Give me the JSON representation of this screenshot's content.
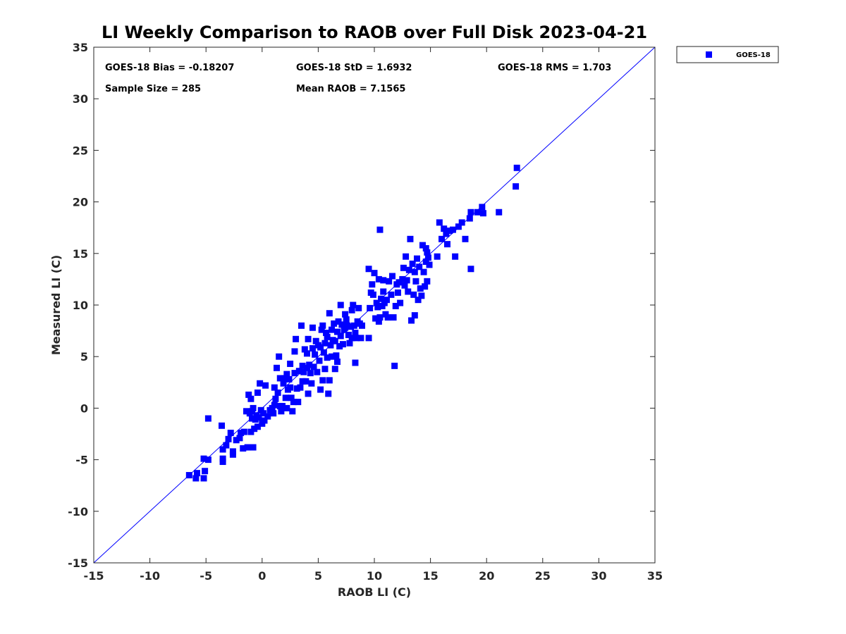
{
  "chart_data": {
    "type": "scatter",
    "title": "LI Weekly Comparison to RAOB over Full Disk 2023-04-21",
    "xlabel": "RAOB LI (C)",
    "ylabel": "Measured LI (C)",
    "xlim": [
      -15,
      35
    ],
    "ylim": [
      -15,
      35
    ],
    "xticks": [
      -15,
      -10,
      -5,
      0,
      5,
      10,
      15,
      20,
      25,
      30,
      35
    ],
    "yticks": [
      -15,
      -10,
      -5,
      0,
      5,
      10,
      15,
      20,
      25,
      30,
      35
    ],
    "grid": false,
    "legend_position": "outside top-right",
    "reference_line": {
      "from": [
        -15,
        -15
      ],
      "to": [
        35,
        35
      ],
      "color": "#0000ff"
    },
    "stats": {
      "bias": "GOES-18 Bias = -0.18207",
      "std": "GOES-18 StD = 1.6932",
      "rms": "GOES-18 RMS = 1.703",
      "sample_size": "Sample Size = 285",
      "mean_raob": "Mean RAOB = 7.1565"
    },
    "series": [
      {
        "name": "GOES-18",
        "color": "#0000ff",
        "marker": "square",
        "points": [
          [
            -6.5,
            -6.5
          ],
          [
            -5.9,
            -6.8
          ],
          [
            -5.8,
            -6.3
          ],
          [
            -5.2,
            -6.8
          ],
          [
            -5.1,
            -6.1
          ],
          [
            -5.2,
            -4.9
          ],
          [
            -4.8,
            -5.0
          ],
          [
            -4.8,
            -1.0
          ],
          [
            -3.6,
            -1.7
          ],
          [
            -3.5,
            -4.0
          ],
          [
            -3.5,
            -4.9
          ],
          [
            -3.5,
            -5.2
          ],
          [
            -3.2,
            -3.6
          ],
          [
            -3.0,
            -3.0
          ],
          [
            -2.8,
            -2.4
          ],
          [
            -2.6,
            -4.2
          ],
          [
            -2.6,
            -4.5
          ],
          [
            -2.3,
            -3.1
          ],
          [
            -2.0,
            -2.9
          ],
          [
            -1.9,
            -2.4
          ],
          [
            -1.7,
            -3.9
          ],
          [
            -1.6,
            -2.3
          ],
          [
            -1.4,
            -0.3
          ],
          [
            -1.3,
            -3.8
          ],
          [
            -1.2,
            1.3
          ],
          [
            -1.1,
            -0.5
          ],
          [
            -1.0,
            0.9
          ],
          [
            -1.0,
            -2.3
          ],
          [
            -0.9,
            -1.0
          ],
          [
            -0.9,
            -0.3
          ],
          [
            -0.8,
            0.0
          ],
          [
            -0.8,
            -3.8
          ],
          [
            -0.7,
            -2.0
          ],
          [
            -0.6,
            -1.1
          ],
          [
            -0.5,
            -0.7
          ],
          [
            -0.4,
            1.5
          ],
          [
            -0.4,
            -1.8
          ],
          [
            -0.3,
            -0.9
          ],
          [
            -0.2,
            2.4
          ],
          [
            -0.1,
            -0.2
          ],
          [
            0.0,
            -1.5
          ],
          [
            0.1,
            -0.5
          ],
          [
            0.2,
            -1.2
          ],
          [
            0.3,
            2.2
          ],
          [
            0.5,
            -0.8
          ],
          [
            0.7,
            -0.2
          ],
          [
            0.9,
            0.0
          ],
          [
            1.0,
            -0.5
          ],
          [
            1.1,
            0.3
          ],
          [
            1.1,
            2.0
          ],
          [
            1.2,
            0.9
          ],
          [
            1.3,
            3.9
          ],
          [
            1.4,
            1.5
          ],
          [
            1.5,
            5.0
          ],
          [
            1.6,
            2.9
          ],
          [
            1.6,
            0.2
          ],
          [
            1.7,
            -0.3
          ],
          [
            1.8,
            0.2
          ],
          [
            1.9,
            2.4
          ],
          [
            2.0,
            2.9
          ],
          [
            2.1,
            1.0
          ],
          [
            2.2,
            3.3
          ],
          [
            2.2,
            0.0
          ],
          [
            2.3,
            1.8
          ],
          [
            2.4,
            2.8
          ],
          [
            2.5,
            4.3
          ],
          [
            2.5,
            2.0
          ],
          [
            2.6,
            1.0
          ],
          [
            2.7,
            -0.3
          ],
          [
            2.8,
            0.6
          ],
          [
            2.9,
            3.4
          ],
          [
            2.9,
            5.5
          ],
          [
            3.0,
            6.7
          ],
          [
            3.1,
            1.9
          ],
          [
            3.2,
            0.6
          ],
          [
            3.3,
            3.6
          ],
          [
            3.4,
            2.0
          ],
          [
            3.5,
            8.0
          ],
          [
            3.6,
            4.1
          ],
          [
            3.6,
            2.6
          ],
          [
            3.7,
            3.5
          ],
          [
            3.8,
            5.7
          ],
          [
            3.9,
            2.6
          ],
          [
            4.0,
            5.3
          ],
          [
            4.0,
            3.9
          ],
          [
            4.1,
            6.7
          ],
          [
            4.1,
            1.4
          ],
          [
            4.2,
            4.2
          ],
          [
            4.3,
            3.4
          ],
          [
            4.4,
            2.4
          ],
          [
            4.5,
            5.8
          ],
          [
            4.5,
            7.8
          ],
          [
            4.6,
            4.0
          ],
          [
            4.7,
            5.2
          ],
          [
            4.8,
            6.5
          ],
          [
            4.9,
            3.5
          ],
          [
            5.0,
            6.1
          ],
          [
            5.1,
            4.6
          ],
          [
            5.2,
            5.9
          ],
          [
            5.2,
            1.8
          ],
          [
            5.3,
            7.6
          ],
          [
            5.4,
            8.0
          ],
          [
            5.4,
            2.7
          ],
          [
            5.5,
            5.4
          ],
          [
            5.6,
            6.3
          ],
          [
            5.6,
            3.8
          ],
          [
            5.7,
            7.3
          ],
          [
            5.8,
            6.9
          ],
          [
            5.8,
            4.9
          ],
          [
            5.9,
            1.4
          ],
          [
            6.0,
            9.2
          ],
          [
            6.0,
            2.7
          ],
          [
            6.1,
            6.1
          ],
          [
            6.2,
            7.6
          ],
          [
            6.2,
            5.0
          ],
          [
            6.3,
            6.6
          ],
          [
            6.4,
            8.2
          ],
          [
            6.5,
            6.5
          ],
          [
            6.5,
            3.8
          ],
          [
            6.6,
            5.1
          ],
          [
            6.7,
            7.4
          ],
          [
            6.7,
            4.5
          ],
          [
            6.8,
            8.4
          ],
          [
            6.9,
            6.0
          ],
          [
            7.0,
            7.0
          ],
          [
            7.0,
            10.0
          ],
          [
            7.1,
            8.1
          ],
          [
            7.2,
            6.2
          ],
          [
            7.3,
            7.6
          ],
          [
            7.4,
            7.8
          ],
          [
            7.4,
            9.1
          ],
          [
            7.5,
            8.6
          ],
          [
            7.6,
            8.0
          ],
          [
            7.7,
            7.1
          ],
          [
            7.8,
            6.3
          ],
          [
            7.9,
            7.9
          ],
          [
            8.0,
            9.5
          ],
          [
            8.0,
            6.8
          ],
          [
            8.1,
            10.0
          ],
          [
            8.2,
            8.0
          ],
          [
            8.3,
            4.4
          ],
          [
            8.3,
            7.3
          ],
          [
            8.4,
            6.8
          ],
          [
            8.5,
            8.4
          ],
          [
            8.6,
            9.7
          ],
          [
            8.7,
            8.2
          ],
          [
            8.8,
            6.8
          ],
          [
            8.9,
            8.0
          ],
          [
            9.5,
            13.5
          ],
          [
            9.5,
            6.8
          ],
          [
            9.6,
            9.7
          ],
          [
            9.7,
            11.2
          ],
          [
            9.8,
            12.0
          ],
          [
            9.9,
            11.0
          ],
          [
            10.0,
            13.1
          ],
          [
            10.1,
            8.7
          ],
          [
            10.2,
            10.2
          ],
          [
            10.3,
            9.8
          ],
          [
            10.4,
            12.5
          ],
          [
            10.4,
            8.4
          ],
          [
            10.5,
            8.8
          ],
          [
            10.5,
            17.3
          ],
          [
            10.6,
            10.6
          ],
          [
            10.7,
            9.9
          ],
          [
            10.8,
            11.3
          ],
          [
            10.8,
            12.4
          ],
          [
            10.9,
            10.2
          ],
          [
            11.0,
            9.1
          ],
          [
            11.1,
            10.5
          ],
          [
            11.2,
            8.8
          ],
          [
            11.3,
            12.3
          ],
          [
            11.5,
            11.0
          ],
          [
            11.6,
            12.8
          ],
          [
            11.7,
            8.8
          ],
          [
            11.8,
            4.1
          ],
          [
            11.9,
            9.9
          ],
          [
            12.0,
            12.0
          ],
          [
            12.1,
            11.2
          ],
          [
            12.2,
            12.2
          ],
          [
            12.3,
            10.2
          ],
          [
            12.5,
            12.5
          ],
          [
            12.6,
            13.6
          ],
          [
            12.7,
            11.9
          ],
          [
            12.8,
            14.7
          ],
          [
            12.9,
            12.4
          ],
          [
            13.0,
            11.3
          ],
          [
            13.1,
            13.4
          ],
          [
            13.2,
            16.4
          ],
          [
            13.3,
            8.5
          ],
          [
            13.4,
            14.0
          ],
          [
            13.5,
            11.0
          ],
          [
            13.6,
            9.0
          ],
          [
            13.6,
            13.2
          ],
          [
            13.7,
            12.3
          ],
          [
            13.8,
            14.5
          ],
          [
            13.9,
            10.5
          ],
          [
            14.0,
            13.7
          ],
          [
            14.1,
            11.6
          ],
          [
            14.2,
            10.9
          ],
          [
            14.3,
            15.8
          ],
          [
            14.4,
            13.2
          ],
          [
            14.5,
            11.8
          ],
          [
            14.6,
            15.5
          ],
          [
            14.6,
            14.2
          ],
          [
            14.7,
            12.3
          ],
          [
            14.7,
            15.1
          ],
          [
            14.8,
            14.6
          ],
          [
            14.9,
            13.9
          ],
          [
            15.6,
            14.7
          ],
          [
            15.8,
            18.0
          ],
          [
            16.0,
            16.4
          ],
          [
            16.2,
            17.4
          ],
          [
            16.4,
            16.9
          ],
          [
            16.5,
            15.9
          ],
          [
            16.7,
            17.2
          ],
          [
            17.0,
            17.3
          ],
          [
            17.2,
            14.7
          ],
          [
            17.5,
            17.6
          ],
          [
            17.8,
            18.0
          ],
          [
            18.1,
            16.4
          ],
          [
            18.5,
            18.4
          ],
          [
            18.6,
            13.5
          ],
          [
            18.6,
            19.0
          ],
          [
            19.2,
            19.0
          ],
          [
            19.6,
            19.5
          ],
          [
            19.7,
            18.9
          ],
          [
            21.1,
            19.0
          ],
          [
            22.6,
            21.5
          ],
          [
            22.7,
            23.3
          ]
        ]
      }
    ]
  }
}
